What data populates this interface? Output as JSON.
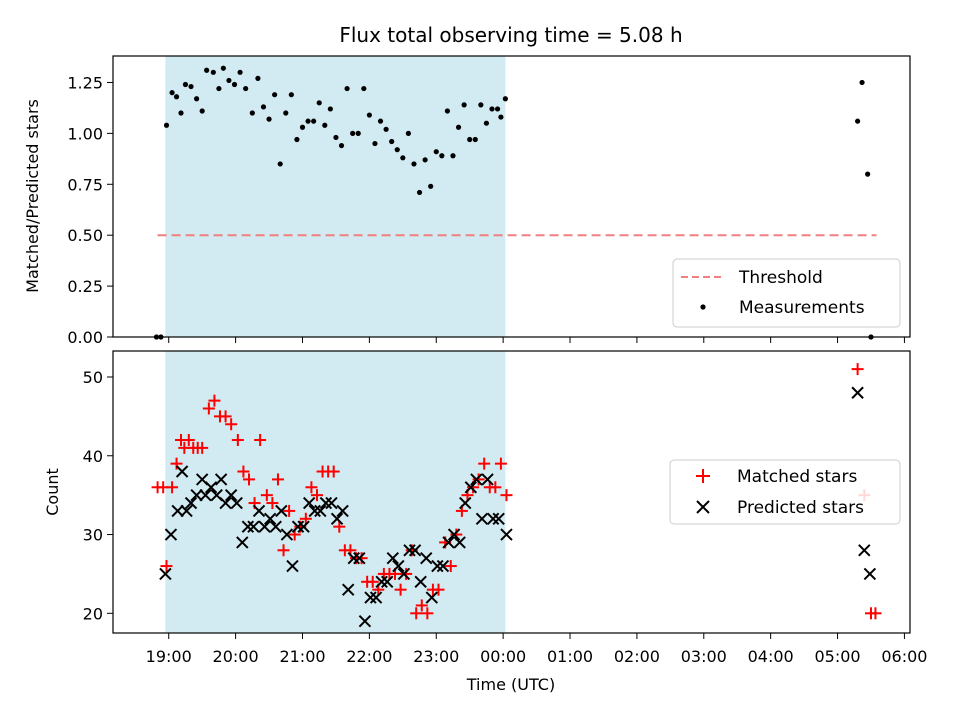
{
  "chart_data": [
    {
      "type": "scatter",
      "title": "Flux total observing time = 5.08 h",
      "ylabel": "Matched/Predicted stars",
      "xlabel": "",
      "xlim": [
        "18:10",
        "06:05"
      ],
      "ylim": [
        0,
        1.38
      ],
      "shaded_region": {
        "start": "18:57",
        "end": "00:02",
        "color": "#add8e6"
      },
      "y_ticks": [
        "0.00",
        "0.25",
        "0.50",
        "0.75",
        "1.00",
        "1.25"
      ],
      "legend": {
        "placement": "lower-right",
        "entries": [
          "Threshold",
          "Measurements"
        ]
      },
      "series": [
        {
          "name": "Threshold",
          "kind": "dashed-line",
          "color": "#f08080",
          "points": [
            {
              "x": "18:50",
              "y": 0.5
            },
            {
              "x": "05:35",
              "y": 0.5
            }
          ]
        },
        {
          "name": "Measurements",
          "kind": "dot",
          "color": "#000000",
          "points": [
            {
              "x": "18:49",
              "y": 0.0
            },
            {
              "x": "18:53",
              "y": 0.0
            },
            {
              "x": "18:58",
              "y": 1.04
            },
            {
              "x": "19:03",
              "y": 1.2
            },
            {
              "x": "19:07",
              "y": 1.18
            },
            {
              "x": "19:11",
              "y": 1.1
            },
            {
              "x": "19:15",
              "y": 1.24
            },
            {
              "x": "19:20",
              "y": 1.23
            },
            {
              "x": "19:25",
              "y": 1.17
            },
            {
              "x": "19:30",
              "y": 1.11
            },
            {
              "x": "19:34",
              "y": 1.31
            },
            {
              "x": "19:40",
              "y": 1.3
            },
            {
              "x": "19:45",
              "y": 1.22
            },
            {
              "x": "19:49",
              "y": 1.32
            },
            {
              "x": "19:54",
              "y": 1.26
            },
            {
              "x": "19:59",
              "y": 1.24
            },
            {
              "x": "20:04",
              "y": 1.3
            },
            {
              "x": "20:09",
              "y": 1.22
            },
            {
              "x": "20:15",
              "y": 1.1
            },
            {
              "x": "20:20",
              "y": 1.27
            },
            {
              "x": "20:25",
              "y": 1.13
            },
            {
              "x": "20:30",
              "y": 1.07
            },
            {
              "x": "20:35",
              "y": 1.19
            },
            {
              "x": "20:40",
              "y": 0.85
            },
            {
              "x": "20:45",
              "y": 1.1
            },
            {
              "x": "20:50",
              "y": 1.19
            },
            {
              "x": "20:55",
              "y": 0.97
            },
            {
              "x": "21:00",
              "y": 1.03
            },
            {
              "x": "21:05",
              "y": 1.06
            },
            {
              "x": "21:10",
              "y": 1.06
            },
            {
              "x": "21:15",
              "y": 1.15
            },
            {
              "x": "21:20",
              "y": 1.04
            },
            {
              "x": "21:25",
              "y": 1.12
            },
            {
              "x": "21:30",
              "y": 0.98
            },
            {
              "x": "21:35",
              "y": 0.94
            },
            {
              "x": "21:40",
              "y": 1.22
            },
            {
              "x": "21:45",
              "y": 1.0
            },
            {
              "x": "21:50",
              "y": 1.0
            },
            {
              "x": "21:55",
              "y": 1.22
            },
            {
              "x": "22:00",
              "y": 1.09
            },
            {
              "x": "22:05",
              "y": 0.95
            },
            {
              "x": "22:10",
              "y": 1.06
            },
            {
              "x": "22:15",
              "y": 1.02
            },
            {
              "x": "22:20",
              "y": 0.96
            },
            {
              "x": "22:25",
              "y": 0.92
            },
            {
              "x": "22:30",
              "y": 0.88
            },
            {
              "x": "22:35",
              "y": 1.0
            },
            {
              "x": "22:40",
              "y": 0.85
            },
            {
              "x": "22:45",
              "y": 0.71
            },
            {
              "x": "22:50",
              "y": 0.87
            },
            {
              "x": "22:55",
              "y": 0.74
            },
            {
              "x": "23:00",
              "y": 0.91
            },
            {
              "x": "23:05",
              "y": 0.89
            },
            {
              "x": "23:10",
              "y": 1.11
            },
            {
              "x": "23:15",
              "y": 0.89
            },
            {
              "x": "23:20",
              "y": 1.03
            },
            {
              "x": "23:25",
              "y": 1.14
            },
            {
              "x": "23:30",
              "y": 0.97
            },
            {
              "x": "23:35",
              "y": 0.97
            },
            {
              "x": "23:40",
              "y": 1.14
            },
            {
              "x": "23:45",
              "y": 1.05
            },
            {
              "x": "23:50",
              "y": 1.12
            },
            {
              "x": "23:55",
              "y": 1.12
            },
            {
              "x": "23:58",
              "y": 1.08
            },
            {
              "x": "00:02",
              "y": 1.17
            },
            {
              "x": "05:18",
              "y": 1.06
            },
            {
              "x": "05:22",
              "y": 1.25
            },
            {
              "x": "05:27",
              "y": 0.8
            },
            {
              "x": "05:30",
              "y": 0.0
            }
          ]
        }
      ]
    },
    {
      "type": "scatter",
      "title": "",
      "ylabel": "Count",
      "xlabel": "Time (UTC)",
      "xlim": [
        "18:10",
        "06:05"
      ],
      "ylim": [
        17.5,
        53.3
      ],
      "shaded_region": {
        "start": "18:57",
        "end": "00:02",
        "color": "#add8e6"
      },
      "x_ticks": [
        "19:00",
        "20:00",
        "21:00",
        "22:00",
        "23:00",
        "00:00",
        "01:00",
        "02:00",
        "03:00",
        "04:00",
        "05:00",
        "06:00"
      ],
      "y_ticks": [
        "20",
        "30",
        "40",
        "50"
      ],
      "legend": {
        "placement": "center-right",
        "entries": [
          "Matched stars",
          "Predicted stars"
        ]
      },
      "series": [
        {
          "name": "Matched stars",
          "kind": "plus",
          "color": "#ff0000",
          "points": [
            {
              "x": "18:50",
              "y": 36
            },
            {
              "x": "18:55",
              "y": 36
            },
            {
              "x": "18:58",
              "y": 26
            },
            {
              "x": "19:03",
              "y": 36
            },
            {
              "x": "19:07",
              "y": 39
            },
            {
              "x": "19:11",
              "y": 42
            },
            {
              "x": "19:14",
              "y": 41
            },
            {
              "x": "19:18",
              "y": 42
            },
            {
              "x": "19:22",
              "y": 41
            },
            {
              "x": "19:26",
              "y": 41
            },
            {
              "x": "19:30",
              "y": 41
            },
            {
              "x": "19:36",
              "y": 46
            },
            {
              "x": "19:41",
              "y": 47
            },
            {
              "x": "19:46",
              "y": 45
            },
            {
              "x": "19:51",
              "y": 45
            },
            {
              "x": "19:56",
              "y": 44
            },
            {
              "x": "20:02",
              "y": 42
            },
            {
              "x": "20:07",
              "y": 38
            },
            {
              "x": "20:12",
              "y": 37
            },
            {
              "x": "20:17",
              "y": 34
            },
            {
              "x": "20:22",
              "y": 42
            },
            {
              "x": "20:28",
              "y": 35
            },
            {
              "x": "20:33",
              "y": 34
            },
            {
              "x": "20:38",
              "y": 37
            },
            {
              "x": "20:43",
              "y": 28
            },
            {
              "x": "20:48",
              "y": 33
            },
            {
              "x": "20:53",
              "y": 30
            },
            {
              "x": "20:58",
              "y": 31
            },
            {
              "x": "21:03",
              "y": 32
            },
            {
              "x": "21:08",
              "y": 36
            },
            {
              "x": "21:13",
              "y": 35
            },
            {
              "x": "21:18",
              "y": 38
            },
            {
              "x": "21:23",
              "y": 38
            },
            {
              "x": "21:28",
              "y": 38
            },
            {
              "x": "21:33",
              "y": 31
            },
            {
              "x": "21:38",
              "y": 28
            },
            {
              "x": "21:43",
              "y": 28
            },
            {
              "x": "21:48",
              "y": 27
            },
            {
              "x": "21:53",
              "y": 27
            },
            {
              "x": "21:58",
              "y": 24
            },
            {
              "x": "22:03",
              "y": 24
            },
            {
              "x": "22:08",
              "y": 23
            },
            {
              "x": "22:13",
              "y": 25
            },
            {
              "x": "22:18",
              "y": 25
            },
            {
              "x": "22:23",
              "y": 25
            },
            {
              "x": "22:28",
              "y": 23
            },
            {
              "x": "22:33",
              "y": 25
            },
            {
              "x": "22:38",
              "y": 28
            },
            {
              "x": "22:42",
              "y": 20
            },
            {
              "x": "22:47",
              "y": 21
            },
            {
              "x": "22:52",
              "y": 20
            },
            {
              "x": "22:57",
              "y": 23
            },
            {
              "x": "23:02",
              "y": 23
            },
            {
              "x": "23:08",
              "y": 29
            },
            {
              "x": "23:13",
              "y": 26
            },
            {
              "x": "23:18",
              "y": 30
            },
            {
              "x": "23:23",
              "y": 33
            },
            {
              "x": "23:28",
              "y": 35
            },
            {
              "x": "23:33",
              "y": 36
            },
            {
              "x": "23:38",
              "y": 37
            },
            {
              "x": "23:43",
              "y": 39
            },
            {
              "x": "23:48",
              "y": 36
            },
            {
              "x": "23:53",
              "y": 36
            },
            {
              "x": "23:58",
              "y": 39
            },
            {
              "x": "00:03",
              "y": 35
            },
            {
              "x": "05:18",
              "y": 51
            },
            {
              "x": "05:24",
              "y": 35
            },
            {
              "x": "05:30",
              "y": 20
            },
            {
              "x": "05:34",
              "y": 20
            }
          ]
        },
        {
          "name": "Predicted stars",
          "kind": "cross",
          "color": "#000000",
          "points": [
            {
              "x": "18:57",
              "y": 25
            },
            {
              "x": "19:02",
              "y": 30
            },
            {
              "x": "19:08",
              "y": 33
            },
            {
              "x": "19:12",
              "y": 38
            },
            {
              "x": "19:16",
              "y": 33
            },
            {
              "x": "19:20",
              "y": 34
            },
            {
              "x": "19:25",
              "y": 35
            },
            {
              "x": "19:30",
              "y": 37
            },
            {
              "x": "19:33",
              "y": 35
            },
            {
              "x": "19:38",
              "y": 36
            },
            {
              "x": "19:43",
              "y": 35
            },
            {
              "x": "19:47",
              "y": 37
            },
            {
              "x": "19:51",
              "y": 34
            },
            {
              "x": "19:56",
              "y": 35
            },
            {
              "x": "20:01",
              "y": 34
            },
            {
              "x": "20:06",
              "y": 29
            },
            {
              "x": "20:11",
              "y": 31
            },
            {
              "x": "20:16",
              "y": 31
            },
            {
              "x": "20:21",
              "y": 33
            },
            {
              "x": "20:26",
              "y": 31
            },
            {
              "x": "20:31",
              "y": 32
            },
            {
              "x": "20:36",
              "y": 31
            },
            {
              "x": "20:41",
              "y": 33
            },
            {
              "x": "20:46",
              "y": 30
            },
            {
              "x": "20:51",
              "y": 26
            },
            {
              "x": "20:56",
              "y": 31
            },
            {
              "x": "21:01",
              "y": 31
            },
            {
              "x": "21:06",
              "y": 34
            },
            {
              "x": "21:11",
              "y": 33
            },
            {
              "x": "21:16",
              "y": 33
            },
            {
              "x": "21:21",
              "y": 34
            },
            {
              "x": "21:26",
              "y": 34
            },
            {
              "x": "21:31",
              "y": 32
            },
            {
              "x": "21:36",
              "y": 33
            },
            {
              "x": "21:41",
              "y": 23
            },
            {
              "x": "21:46",
              "y": 27
            },
            {
              "x": "21:51",
              "y": 27
            },
            {
              "x": "21:56",
              "y": 19
            },
            {
              "x": "22:01",
              "y": 22
            },
            {
              "x": "22:06",
              "y": 22
            },
            {
              "x": "22:11",
              "y": 24
            },
            {
              "x": "22:16",
              "y": 24
            },
            {
              "x": "22:21",
              "y": 27
            },
            {
              "x": "22:26",
              "y": 26
            },
            {
              "x": "22:31",
              "y": 25
            },
            {
              "x": "22:36",
              "y": 28
            },
            {
              "x": "22:41",
              "y": 28
            },
            {
              "x": "22:46",
              "y": 24
            },
            {
              "x": "22:51",
              "y": 27
            },
            {
              "x": "22:56",
              "y": 22
            },
            {
              "x": "23:01",
              "y": 26
            },
            {
              "x": "23:06",
              "y": 26
            },
            {
              "x": "23:11",
              "y": 29
            },
            {
              "x": "23:16",
              "y": 30
            },
            {
              "x": "23:21",
              "y": 29
            },
            {
              "x": "23:26",
              "y": 34
            },
            {
              "x": "23:31",
              "y": 36
            },
            {
              "x": "23:36",
              "y": 37
            },
            {
              "x": "23:41",
              "y": 32
            },
            {
              "x": "23:46",
              "y": 37
            },
            {
              "x": "23:51",
              "y": 32
            },
            {
              "x": "23:56",
              "y": 32
            },
            {
              "x": "00:03",
              "y": 30
            },
            {
              "x": "05:18",
              "y": 48
            },
            {
              "x": "05:24",
              "y": 28
            },
            {
              "x": "05:29",
              "y": 25
            }
          ]
        }
      ]
    }
  ]
}
